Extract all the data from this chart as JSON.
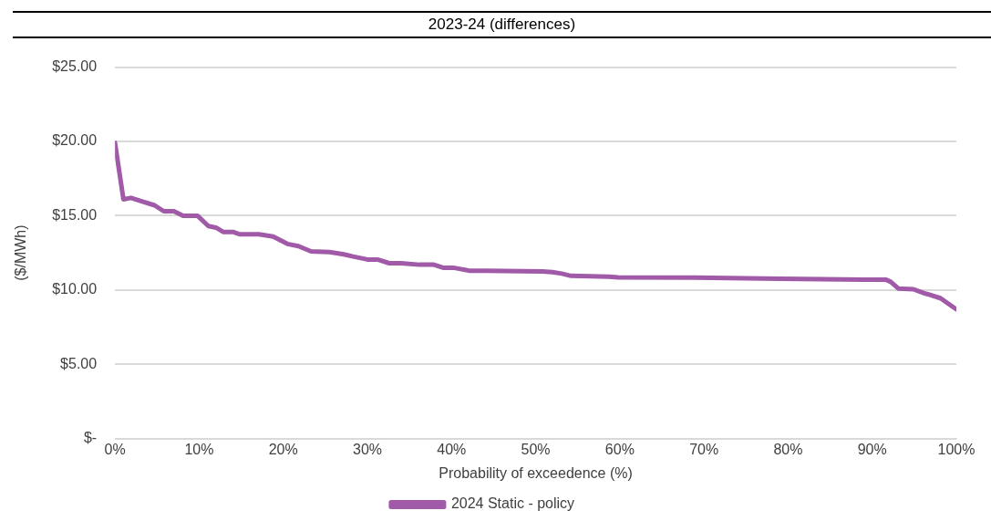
{
  "chart_data": {
    "type": "line",
    "title": "2023-24 (differences)",
    "xlabel": "Probability of exceedence (%)",
    "ylabel": "($/MWh)",
    "xlim": [
      0,
      100
    ],
    "xticks": [
      {
        "value": 0,
        "label": "0%"
      },
      {
        "value": 10,
        "label": "10%"
      },
      {
        "value": 20,
        "label": "20%"
      },
      {
        "value": 30,
        "label": "30%"
      },
      {
        "value": 40,
        "label": "40%"
      },
      {
        "value": 50,
        "label": "50%"
      },
      {
        "value": 60,
        "label": "60%"
      },
      {
        "value": 70,
        "label": "70%"
      },
      {
        "value": 80,
        "label": "80%"
      },
      {
        "value": 90,
        "label": "90%"
      },
      {
        "value": 100,
        "label": "100%"
      }
    ],
    "ylim": [
      0,
      25
    ],
    "yticks": [
      {
        "value": 0,
        "label": "$-"
      },
      {
        "value": 5,
        "label": "$5.00"
      },
      {
        "value": 10,
        "label": "$10.00"
      },
      {
        "value": 15,
        "label": "$15.00"
      },
      {
        "value": 20,
        "label": "$20.00"
      },
      {
        "value": 25,
        "label": "$25.00"
      }
    ],
    "grid": "y",
    "legend": "bottom",
    "marker": "none",
    "line_style": "solid",
    "series": [
      {
        "name": "2024 Static - policy",
        "color": "#a05aa8",
        "x": [
          0,
          1.0,
          1.9,
          3.0,
          4.7,
          5.8,
          7.0,
          8.1,
          9.8,
          11.1,
          12.0,
          12.9,
          14.1,
          14.8,
          17.1,
          18.8,
          20.5,
          21.8,
          23.3,
          25.5,
          27.2,
          28.3,
          30.0,
          31.2,
          32.6,
          34.0,
          36.2,
          37.9,
          39.0,
          40.2,
          42.1,
          44.1,
          50.8,
          52.0,
          53.1,
          54.2,
          58.7,
          59.8,
          68.8,
          79.0,
          89.0,
          91.6,
          92.2,
          93.1,
          94.9,
          96.1,
          98.1,
          100
        ],
        "values": [
          19.9,
          16.1,
          16.2,
          16.0,
          15.7,
          15.3,
          15.3,
          15.0,
          15.0,
          14.3,
          14.2,
          13.9,
          13.9,
          13.75,
          13.75,
          13.6,
          13.1,
          12.95,
          12.6,
          12.55,
          12.4,
          12.25,
          12.05,
          12.05,
          11.8,
          11.8,
          11.7,
          11.7,
          11.5,
          11.5,
          11.3,
          11.3,
          11.25,
          11.2,
          11.1,
          10.95,
          10.9,
          10.85,
          10.83,
          10.75,
          10.7,
          10.7,
          10.55,
          10.1,
          10.05,
          9.8,
          9.45,
          8.7
        ]
      }
    ]
  }
}
